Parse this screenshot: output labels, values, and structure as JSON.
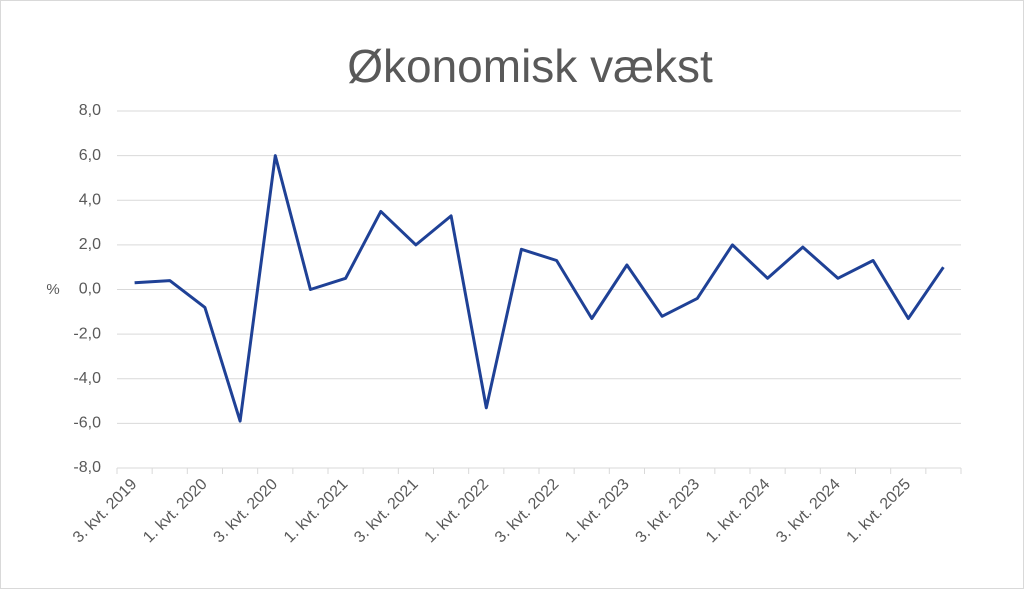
{
  "chart_data": {
    "type": "line",
    "title": "Økonomisk vækst",
    "y_label": "%",
    "categories": [
      "3. kvt. 2019",
      null,
      "1. kvt. 2020",
      null,
      "3. kvt. 2020",
      null,
      "1. kvt. 2021",
      null,
      "3. kvt. 2021",
      null,
      "1. kvt. 2022",
      null,
      "3. kvt. 2022",
      null,
      "1. kvt. 2023",
      null,
      "3. kvt. 2023",
      null,
      "1. kvt. 2024",
      null,
      "3. kvt. 2024",
      null,
      "1. kvt. 2025",
      null
    ],
    "series": [
      {
        "color": "#1f4196",
        "values": [
          0.3,
          0.4,
          -0.8,
          -5.9,
          6.0,
          0.0,
          0.5,
          3.5,
          2.0,
          3.3,
          -5.3,
          1.8,
          1.3,
          -1.3,
          1.1,
          -1.2,
          -0.4,
          2.0,
          0.5,
          1.9,
          0.5,
          1.3,
          -1.3,
          1.0
        ]
      }
    ],
    "ylim": [
      -8,
      8
    ],
    "yticks": [
      {
        "value": -8,
        "label": "-8,0"
      },
      {
        "value": -6,
        "label": "-6,0"
      },
      {
        "value": -4,
        "label": "-4,0"
      },
      {
        "value": -2,
        "label": "-2,0"
      },
      {
        "value": 0,
        "label": "0,0"
      },
      {
        "value": 2,
        "label": "2,0"
      },
      {
        "value": 4,
        "label": "4,0"
      },
      {
        "value": 6,
        "label": "6,0"
      },
      {
        "value": 8,
        "label": "8,0"
      }
    ],
    "grid": true
  }
}
